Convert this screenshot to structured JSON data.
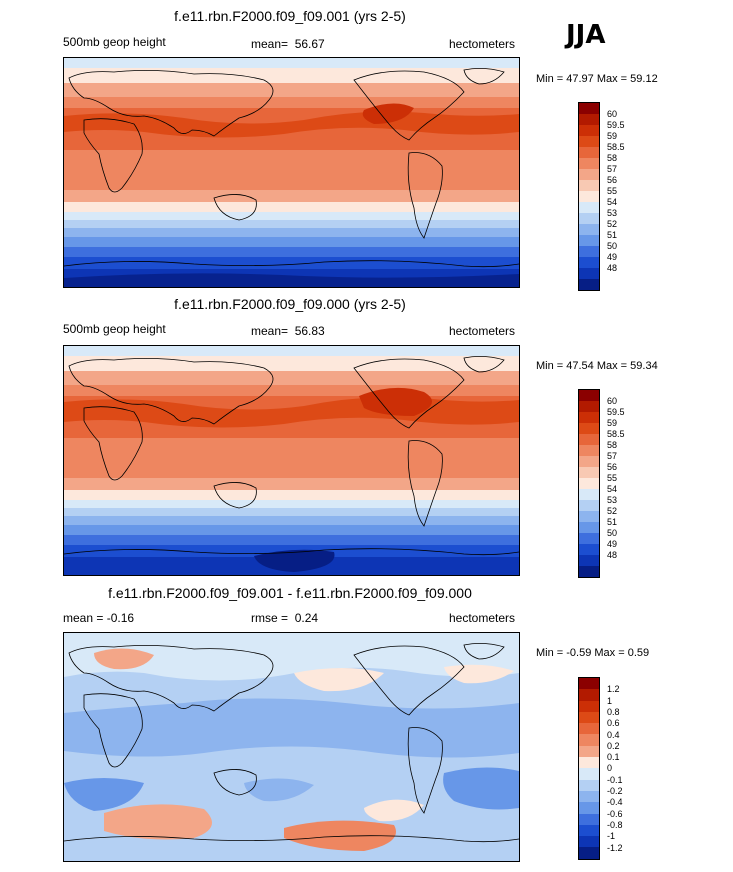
{
  "season": "JJA",
  "colors": {
    "warm_ramp": [
      "#8b0000",
      "#b21a00",
      "#cc2f06",
      "#dd4a16",
      "#e7663a",
      "#ee8660",
      "#f3a688",
      "#f8c9b3",
      "#fde8dc",
      "#d8e9f8",
      "#b4d0f3",
      "#8db4ee",
      "#6797e8",
      "#3e6fde",
      "#1c4ed0",
      "#0d35b5",
      "#061e85"
    ],
    "diff_ramp": [
      "#8b0000",
      "#b21a00",
      "#cc2f06",
      "#dd4a16",
      "#e7663a",
      "#ee8660",
      "#f3a688",
      "#fde8dc",
      "#d8e9f8",
      "#b4d0f3",
      "#8db4ee",
      "#6797e8",
      "#3e6fde",
      "#1c4ed0",
      "#0d35b5",
      "#061e85"
    ]
  },
  "panels": [
    {
      "title": "f.e11.rbn.F2000.f09_f09.001 (yrs 2-5)",
      "field": "500mb geop height",
      "mean_label": "mean=",
      "mean_value": "56.67",
      "units": "hectometers",
      "minmax": "Min =  47.97 Max =  59.12",
      "colorbar_labels": [
        "60",
        "59.5",
        "59",
        "58.5",
        "58",
        "57",
        "56",
        "55",
        "54",
        "53",
        "52",
        "51",
        "50",
        "49",
        "48"
      ]
    },
    {
      "title": "f.e11.rbn.F2000.f09_f09.000 (yrs 2-5)",
      "field": "500mb geop height",
      "mean_label": "mean=",
      "mean_value": "56.83",
      "units": "hectometers",
      "minmax": "Min =  47.54 Max =  59.34",
      "colorbar_labels": [
        "60",
        "59.5",
        "59",
        "58.5",
        "58",
        "57",
        "56",
        "55",
        "54",
        "53",
        "52",
        "51",
        "50",
        "49",
        "48"
      ]
    },
    {
      "title": "f.e11.rbn.F2000.f09_f09.001 - f.e11.rbn.F2000.f09_f09.000",
      "field": "mean =  -0.16",
      "mean_label": "rmse =",
      "mean_value": "0.24",
      "units": "hectometers",
      "minmax": "Min =  -0.59 Max =   0.59",
      "colorbar_labels": [
        "1.2",
        "1",
        "0.8",
        "0.6",
        "0.4",
        "0.2",
        "0.1",
        "0",
        "-0.1",
        "-0.2",
        "-0.4",
        "-0.6",
        "-0.8",
        "-1",
        "-1.2"
      ]
    }
  ],
  "chart_data": [
    {
      "type": "heatmap",
      "title": "f.e11.rbn.F2000.f09_f09.001 (yrs 2-5)",
      "variable": "500mb geop height",
      "units": "hectometers",
      "mean": 56.67,
      "min": 47.97,
      "max": 59.12,
      "contour_levels": [
        48,
        49,
        50,
        51,
        52,
        53,
        54,
        55,
        56,
        57,
        58,
        58.5,
        59,
        59.5,
        60
      ],
      "latitude_profile": {
        "lat": [
          90,
          75,
          60,
          45,
          30,
          15,
          0,
          -15,
          -30,
          -45,
          -60,
          -75,
          -90
        ],
        "value": [
          55.2,
          55.4,
          56.2,
          57.6,
          58.7,
          58.6,
          58.4,
          58.1,
          57.4,
          56.0,
          53.3,
          50.2,
          49.0
        ]
      }
    },
    {
      "type": "heatmap",
      "title": "f.e11.rbn.F2000.f09_f09.000 (yrs 2-5)",
      "variable": "500mb geop height",
      "units": "hectometers",
      "mean": 56.83,
      "min": 47.54,
      "max": 59.34,
      "contour_levels": [
        48,
        49,
        50,
        51,
        52,
        53,
        54,
        55,
        56,
        57,
        58,
        58.5,
        59,
        59.5,
        60
      ],
      "latitude_profile": {
        "lat": [
          90,
          75,
          60,
          45,
          30,
          15,
          0,
          -15,
          -30,
          -45,
          -60,
          -75,
          -90
        ],
        "value": [
          55.4,
          55.6,
          56.4,
          57.8,
          58.9,
          58.8,
          58.6,
          58.3,
          57.6,
          56.2,
          53.4,
          50.0,
          48.6
        ]
      }
    },
    {
      "type": "heatmap",
      "title": "f.e11.rbn.F2000.f09_f09.001 - f.e11.rbn.F2000.f09_f09.000",
      "variable": "500mb geop height difference",
      "units": "hectometers",
      "mean": -0.16,
      "rmse": 0.24,
      "min": -0.59,
      "max": 0.59,
      "contour_levels": [
        -1.2,
        -1,
        -0.8,
        -0.6,
        -0.4,
        -0.2,
        -0.1,
        0,
        0.1,
        0.2,
        0.4,
        0.6,
        0.8,
        1,
        1.2
      ],
      "latitude_profile": {
        "lat": [
          90,
          75,
          60,
          45,
          30,
          15,
          0,
          -15,
          -30,
          -45,
          -60,
          -75,
          -90
        ],
        "value": [
          -0.05,
          -0.1,
          -0.15,
          -0.1,
          -0.2,
          -0.25,
          -0.2,
          -0.2,
          -0.3,
          0.1,
          -0.15,
          0.15,
          0.0
        ]
      }
    }
  ]
}
